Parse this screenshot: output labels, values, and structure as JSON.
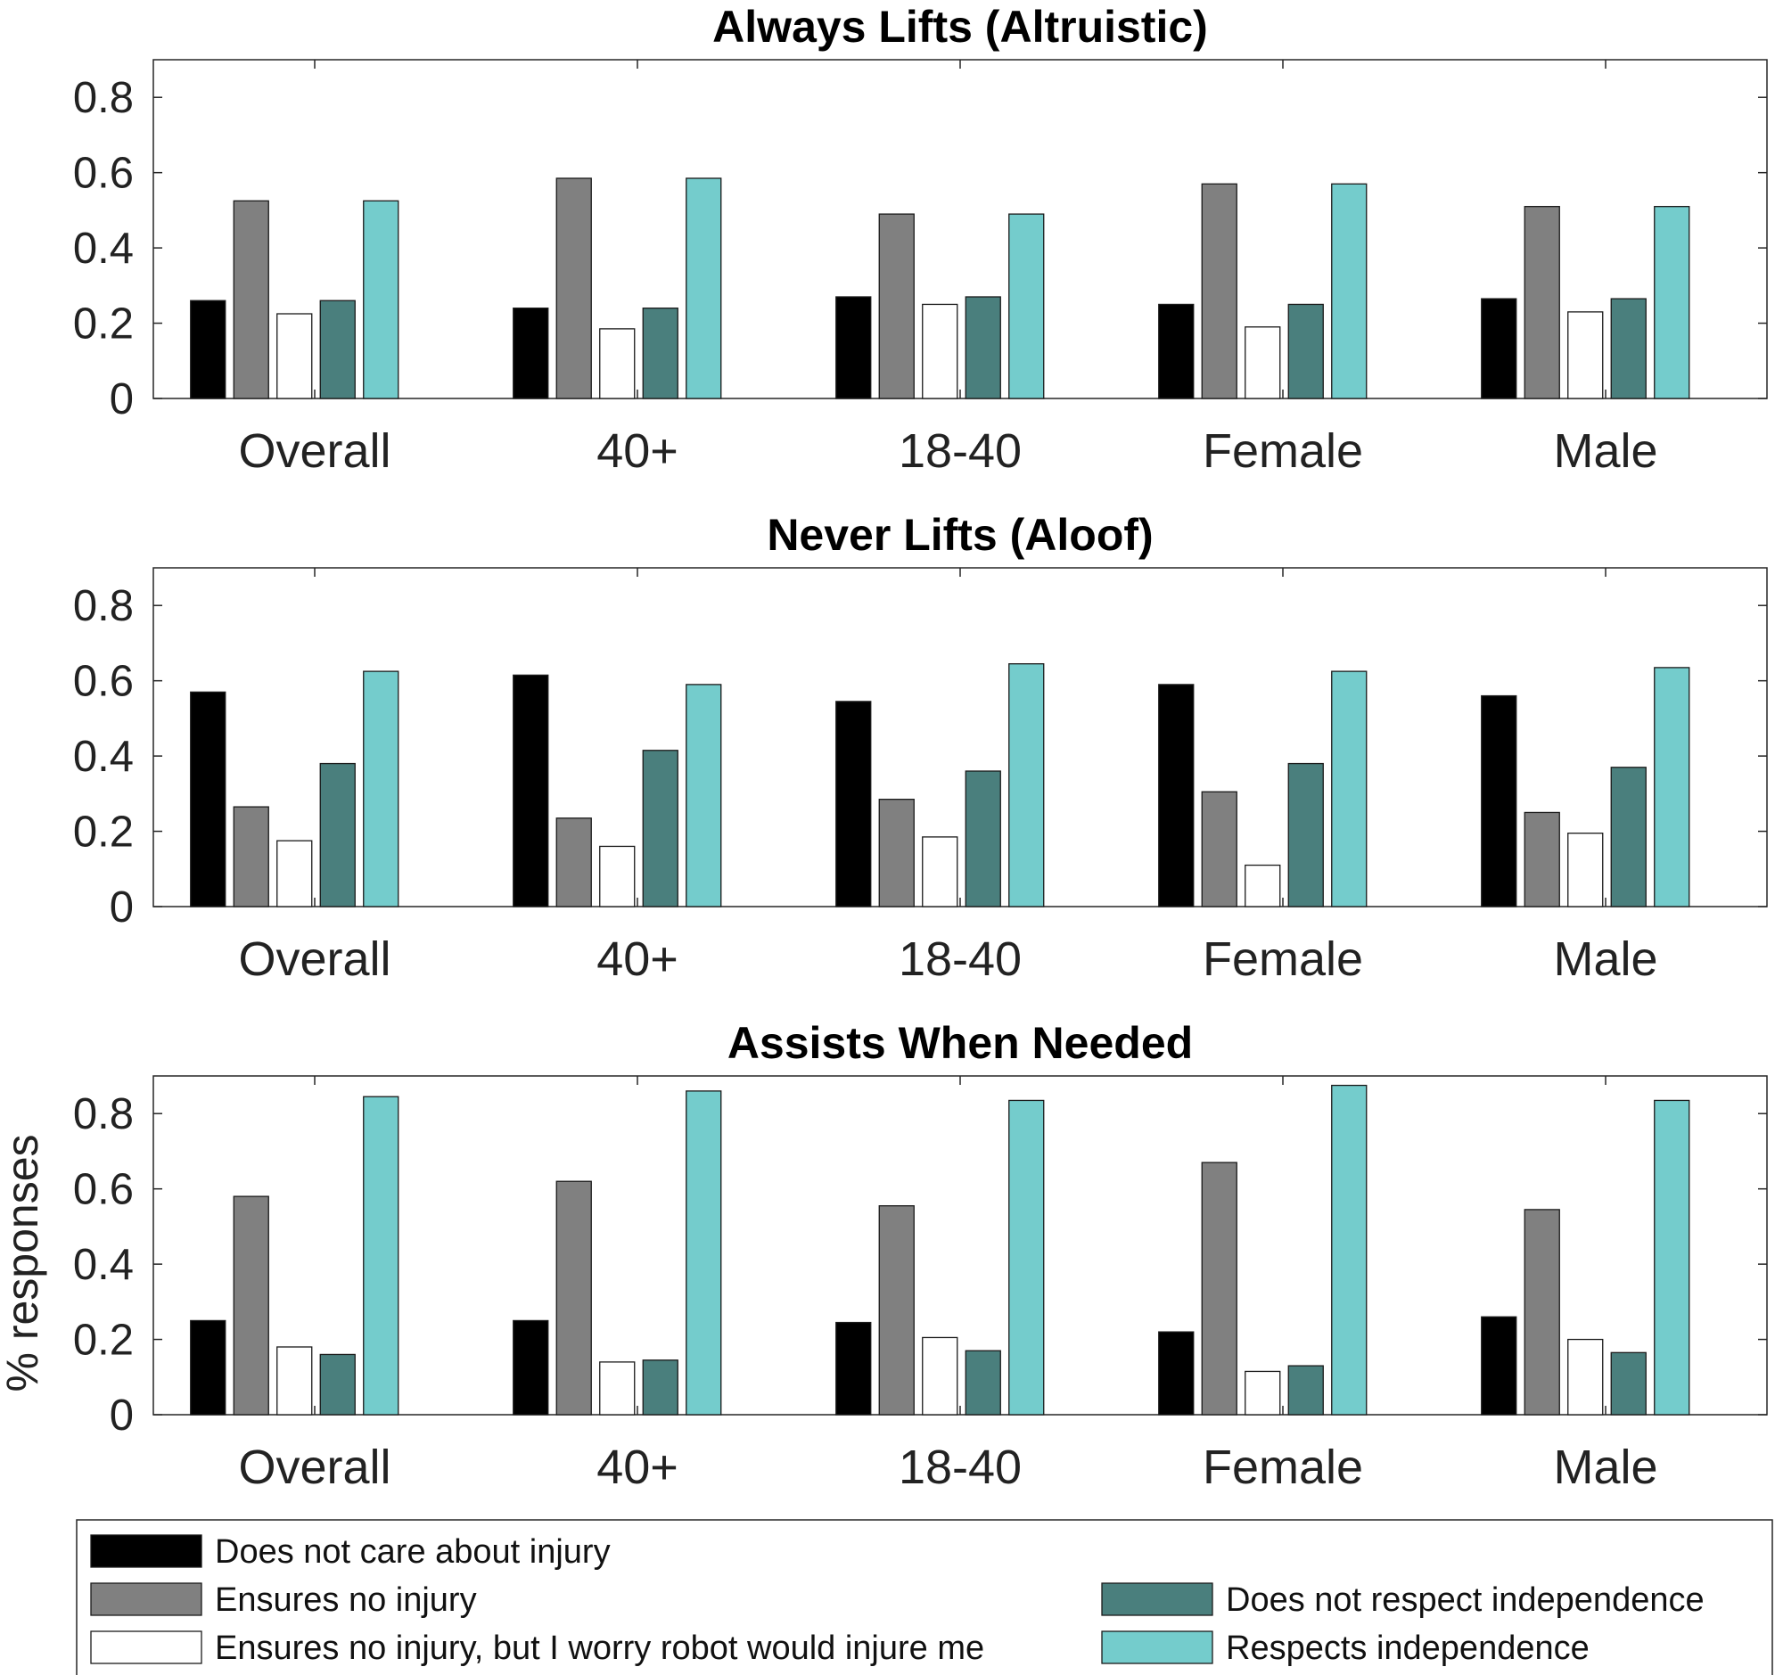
{
  "chart_data": [
    {
      "type": "bar",
      "title": "Always Lifts (Altruistic)",
      "xlabel": "",
      "ylabel": "",
      "ylim": [
        0,
        0.9
      ],
      "yticks": [
        "0",
        "0.2",
        "0.4",
        "0.6",
        "0.8"
      ],
      "categories": [
        "Overall",
        "40+",
        "18-40",
        "Female",
        "Male"
      ],
      "series": [
        {
          "name": "Does not care about injury",
          "values": [
            0.26,
            0.24,
            0.27,
            0.25,
            0.265
          ]
        },
        {
          "name": "Ensures no injury",
          "values": [
            0.525,
            0.585,
            0.49,
            0.57,
            0.51
          ]
        },
        {
          "name": "Ensures no injury, but I worry robot would injure me",
          "values": [
            0.225,
            0.185,
            0.25,
            0.19,
            0.23
          ]
        },
        {
          "name": "Does not respect independence",
          "values": [
            0.26,
            0.24,
            0.27,
            0.25,
            0.265
          ]
        },
        {
          "name": "Respects independence",
          "values": [
            0.525,
            0.585,
            0.49,
            0.57,
            0.51
          ]
        }
      ]
    },
    {
      "type": "bar",
      "title": "Never Lifts (Aloof)",
      "xlabel": "",
      "ylabel": "",
      "ylim": [
        0,
        0.9
      ],
      "yticks": [
        "0",
        "0.2",
        "0.4",
        "0.6",
        "0.8"
      ],
      "categories": [
        "Overall",
        "40+",
        "18-40",
        "Female",
        "Male"
      ],
      "series": [
        {
          "name": "Does not care about injury",
          "values": [
            0.57,
            0.615,
            0.545,
            0.59,
            0.56
          ]
        },
        {
          "name": "Ensures no injury",
          "values": [
            0.265,
            0.235,
            0.285,
            0.305,
            0.25
          ]
        },
        {
          "name": "Ensures no injury, but I worry robot would injure me",
          "values": [
            0.175,
            0.16,
            0.185,
            0.11,
            0.195
          ]
        },
        {
          "name": "Does not respect independence",
          "values": [
            0.38,
            0.415,
            0.36,
            0.38,
            0.37
          ]
        },
        {
          "name": "Respects independence",
          "values": [
            0.625,
            0.59,
            0.645,
            0.625,
            0.635
          ]
        }
      ]
    },
    {
      "type": "bar",
      "title": "Assists When Needed",
      "xlabel": "",
      "ylabel": "% responses",
      "ylim": [
        0,
        0.9
      ],
      "yticks": [
        "0",
        "0.2",
        "0.4",
        "0.6",
        "0.8"
      ],
      "categories": [
        "Overall",
        "40+",
        "18-40",
        "Female",
        "Male"
      ],
      "series": [
        {
          "name": "Does not care about injury",
          "values": [
            0.25,
            0.25,
            0.245,
            0.22,
            0.26
          ]
        },
        {
          "name": "Ensures no injury",
          "values": [
            0.58,
            0.62,
            0.555,
            0.67,
            0.545
          ]
        },
        {
          "name": "Ensures no injury, but I worry robot would injure me",
          "values": [
            0.18,
            0.14,
            0.205,
            0.115,
            0.2
          ]
        },
        {
          "name": "Does not respect independence",
          "values": [
            0.16,
            0.145,
            0.17,
            0.13,
            0.165
          ]
        },
        {
          "name": "Respects independence",
          "values": [
            0.845,
            0.86,
            0.835,
            0.875,
            0.835
          ]
        }
      ]
    }
  ],
  "legend": {
    "position": "bottom",
    "items": [
      {
        "label": "Does not care about injury",
        "color": "#000000"
      },
      {
        "label": "Ensures no injury",
        "color": "#808080"
      },
      {
        "label": "Ensures no injury, but I worry robot would injure me",
        "color": "#ffffff"
      },
      {
        "label": "Does not respect independence",
        "color": "#4a7f7d"
      },
      {
        "label": "Respects independence",
        "color": "#74cccc"
      }
    ]
  },
  "series_colors": [
    "#000000",
    "#808080",
    "#ffffff",
    "#4a7f7d",
    "#74cccc"
  ]
}
